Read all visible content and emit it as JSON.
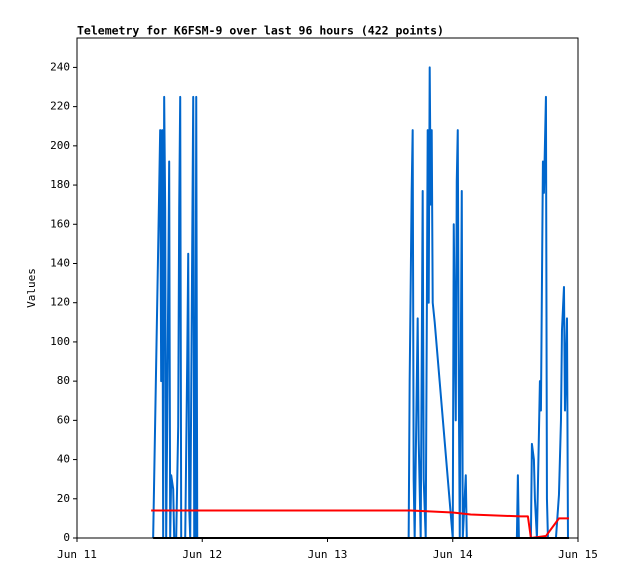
{
  "chart_data": {
    "type": "line",
    "title": "Telemetry for K6FSM-9 over last 96 hours (422 points)",
    "y_label": "Values",
    "xlim": [
      11,
      15
    ],
    "xticks": [
      {
        "value": 11,
        "label": "Jun 11"
      },
      {
        "value": 12,
        "label": "Jun 12"
      },
      {
        "value": 13,
        "label": "Jun 13"
      },
      {
        "value": 14,
        "label": "Jun 14"
      },
      {
        "value": 15,
        "label": "Jun 15"
      }
    ],
    "ylim": [
      0,
      255
    ],
    "yticks": [
      0,
      20,
      40,
      60,
      80,
      100,
      120,
      140,
      160,
      180,
      200,
      220,
      240
    ],
    "series": [
      {
        "color": "#0066cc",
        "x": [
          11.608,
          11.656,
          11.664,
          11.672,
          11.68,
          11.688,
          11.696,
          11.704,
          11.712,
          11.72,
          11.736,
          11.744,
          11.752,
          11.768,
          11.776,
          11.792,
          11.808,
          11.816,
          11.824,
          11.832,
          11.864,
          11.88,
          11.888,
          11.896,
          11.904,
          11.928,
          11.936,
          11.944,
          11.952,
          11.96,
          13.648,
          13.656,
          13.664,
          13.672,
          13.68,
          13.688,
          13.696,
          13.72,
          13.728,
          13.744,
          13.76,
          13.768,
          13.784,
          13.792,
          13.8,
          13.808,
          13.816,
          13.824,
          13.832,
          13.84,
          13.856,
          14.0,
          14.008,
          14.024,
          14.032,
          14.04,
          14.048,
          14.056,
          14.072,
          14.08,
          14.104,
          14.112,
          14.512,
          14.52,
          14.528,
          14.624,
          14.632,
          14.648,
          14.656,
          14.672,
          14.696,
          14.704,
          14.72,
          14.728,
          14.744,
          14.752,
          14.76,
          14.824,
          14.848,
          14.864,
          14.872,
          14.888,
          14.896,
          14.912,
          14.92
        ],
        "values": [
          0,
          177,
          208,
          80,
          208,
          0,
          225,
          168,
          0,
          57,
          192,
          0,
          32,
          25,
          0,
          0,
          57,
          168,
          225,
          0,
          0,
          90,
          145,
          15,
          0,
          225,
          0,
          0,
          225,
          0,
          0,
          80,
          128,
          177,
          208,
          30,
          0,
          112,
          50,
          0,
          177,
          30,
          0,
          100,
          208,
          120,
          240,
          170,
          208,
          120,
          110,
          0,
          160,
          60,
          182,
          208,
          80,
          0,
          177,
          0,
          32,
          0,
          0,
          32,
          0,
          0,
          48,
          40,
          20,
          0,
          80,
          65,
          192,
          176,
          225,
          20,
          0,
          0,
          22,
          60,
          106,
          128,
          65,
          112,
          0
        ]
      },
      {
        "color": "#ff0000",
        "x": [
          11.592,
          13.664,
          14.0,
          14.144,
          14.544,
          14.6,
          14.624,
          14.744,
          14.848,
          14.928
        ],
        "values": [
          14,
          14,
          13,
          12,
          11,
          11,
          0,
          1,
          10,
          10
        ]
      },
      {
        "color": "#000000",
        "x": [
          11.608,
          14.928
        ],
        "values": [
          0,
          0
        ]
      }
    ]
  }
}
